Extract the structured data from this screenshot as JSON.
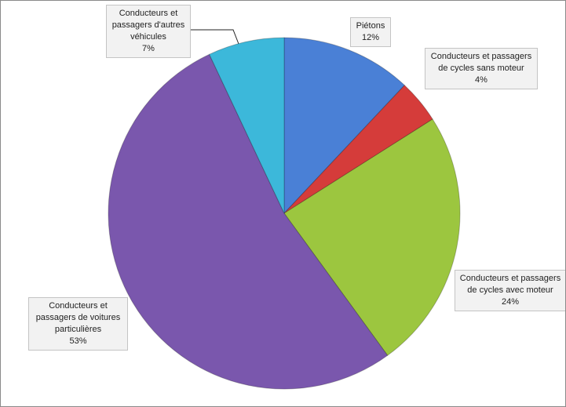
{
  "chart_data": {
    "type": "pie",
    "categories": [
      "Piétons",
      "Conducteurs et passagers de cycles sans moteur",
      "Conducteurs et passagers de cycles avec moteur",
      "Conducteurs et passagers de voitures particulières",
      "Conducteurs et passagers d'autres véhicules"
    ],
    "values": [
      12,
      4,
      24,
      53,
      7
    ],
    "value_labels": [
      "12%",
      "4%",
      "24%",
      "53%",
      "7%"
    ],
    "colors": [
      "#4a80d6",
      "#d53c3a",
      "#9cc63f",
      "#7a57ad",
      "#3cb8da"
    ]
  }
}
